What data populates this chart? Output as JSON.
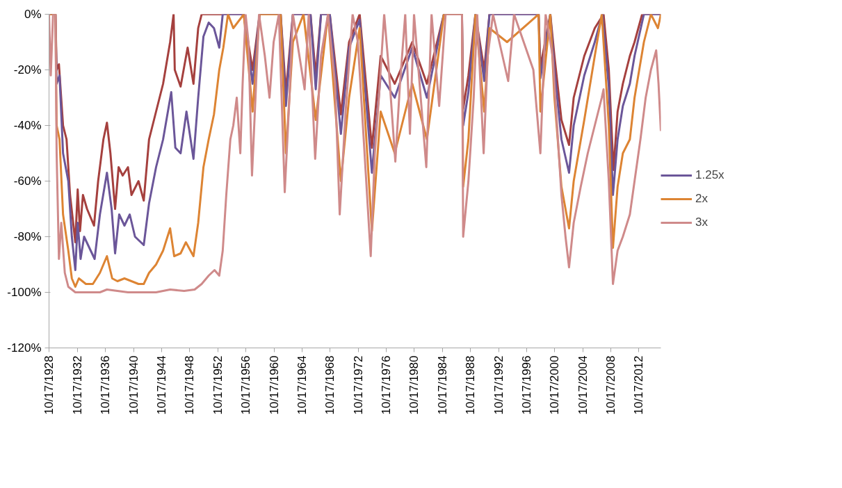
{
  "chart_data": {
    "type": "line",
    "legend": "right",
    "grid": false,
    "line_style": "solid",
    "marker": "none",
    "xlim": [
      "1928-10-01",
      "2015-12-01"
    ],
    "xticks": [
      {
        "value": "1928-10-17",
        "label": "10/17/1928"
      },
      {
        "value": "1932-10-17",
        "label": "10/17/1932"
      },
      {
        "value": "1936-10-17",
        "label": "10/17/1936"
      },
      {
        "value": "1940-10-17",
        "label": "10/17/1940"
      },
      {
        "value": "1944-10-17",
        "label": "10/17/1944"
      },
      {
        "value": "1948-10-17",
        "label": "10/17/1948"
      },
      {
        "value": "1952-10-17",
        "label": "10/17/1952"
      },
      {
        "value": "1956-10-17",
        "label": "10/17/1956"
      },
      {
        "value": "1960-10-17",
        "label": "10/17/1960"
      },
      {
        "value": "1964-10-17",
        "label": "10/17/1964"
      },
      {
        "value": "1968-10-17",
        "label": "10/17/1968"
      },
      {
        "value": "1972-10-17",
        "label": "10/17/1972"
      },
      {
        "value": "1976-10-17",
        "label": "10/17/1976"
      },
      {
        "value": "1980-10-17",
        "label": "10/17/1980"
      },
      {
        "value": "1984-10-17",
        "label": "10/17/1984"
      },
      {
        "value": "1988-10-17",
        "label": "10/17/1988"
      },
      {
        "value": "1992-10-17",
        "label": "10/17/1992"
      },
      {
        "value": "1996-10-17",
        "label": "10/17/1996"
      },
      {
        "value": "2000-10-17",
        "label": "10/17/2000"
      },
      {
        "value": "2004-10-17",
        "label": "10/17/2004"
      },
      {
        "value": "2008-10-17",
        "label": "10/17/2008"
      },
      {
        "value": "2012-10-17",
        "label": "10/17/2012"
      }
    ],
    "ylim": [
      -120,
      0
    ],
    "yticks": [
      {
        "value": -120,
        "label": "-120%"
      },
      {
        "value": -100,
        "label": "-100%"
      },
      {
        "value": -80,
        "label": "-80%"
      },
      {
        "value": -60,
        "label": "-60%"
      },
      {
        "value": -40,
        "label": "-40%"
      },
      {
        "value": -20,
        "label": "-20%"
      },
      {
        "value": 0,
        "label": "0%"
      }
    ],
    "series": [
      {
        "color": "#a5403e",
        "x": [
          "1928-10",
          "1929-09",
          "1929-11",
          "1930-03",
          "1930-10",
          "1931-04",
          "1931-10",
          "1932-07",
          "1932-11",
          "1933-03",
          "1933-08",
          "1934-03",
          "1935-03",
          "1935-10",
          "1936-07",
          "1937-01",
          "1937-07",
          "1938-03",
          "1938-09",
          "1939-04",
          "1940-01",
          "1940-07",
          "1941-07",
          "1942-04",
          "1943-01",
          "1944-01",
          "1945-01",
          "1946-01",
          "1946-07",
          "1946-09",
          "1947-07",
          "1948-07",
          "1949-05",
          "1950-01",
          "1950-07",
          "1956-07",
          "1957-10",
          "1958-10",
          "1961-10",
          "1962-07",
          "1963-07",
          "1966-01",
          "1966-10",
          "1967-07",
          "1968-10",
          "1970-05",
          "1971-07",
          "1973-01",
          "1974-10",
          "1976-01",
          "1978-01",
          "1980-07",
          "1982-08",
          "1985-01",
          "1987-08",
          "1987-10",
          "1988-07",
          "1989-07",
          "1990-10",
          "1991-07",
          "1998-07",
          "1998-10",
          "2000-03",
          "2000-10",
          "2001-10",
          "2002-11",
          "2003-07",
          "2005-01",
          "2006-07",
          "2007-10",
          "2008-07",
          "2009-03",
          "2009-10",
          "2010-07",
          "2011-07",
          "2012-03",
          "2013-04",
          "2015-12"
        ],
        "values": [
          0,
          0,
          -20,
          -18,
          -40,
          -45,
          -65,
          -82,
          -63,
          -78,
          -65,
          -70,
          -76,
          -60,
          -45,
          -39,
          -50,
          -70,
          -55,
          -58,
          -55,
          -65,
          -60,
          -67,
          -45,
          -35,
          -25,
          -10,
          0,
          -20,
          -26,
          -12,
          -25,
          -5,
          0,
          0,
          -20,
          0,
          0,
          -28,
          0,
          0,
          -22,
          0,
          0,
          -36,
          -10,
          0,
          -48,
          -15,
          -25,
          -10,
          -25,
          0,
          0,
          -34,
          -22,
          0,
          -20,
          0,
          0,
          -19,
          0,
          -15,
          -38,
          -47,
          -30,
          -15,
          -5,
          0,
          -20,
          -56,
          -35,
          -25,
          -15,
          -10,
          0,
          0
        ]
      },
      {
        "name": "1.25x",
        "color": "#6b5699",
        "x": [
          "1928-10",
          "1929-09",
          "1929-11",
          "1930-04",
          "1930-10",
          "1931-07",
          "1932-01",
          "1932-07",
          "1932-11",
          "1933-04",
          "1933-10",
          "1934-07",
          "1935-04",
          "1936-01",
          "1937-01",
          "1937-09",
          "1938-03",
          "1938-10",
          "1939-07",
          "1940-04",
          "1941-01",
          "1942-04",
          "1943-01",
          "1944-01",
          "1945-01",
          "1946-03",
          "1946-10",
          "1947-07",
          "1948-05",
          "1949-05",
          "1950-01",
          "1950-10",
          "1951-07",
          "1952-04",
          "1953-01",
          "1953-07",
          "1956-07",
          "1957-10",
          "1958-10",
          "1961-10",
          "1962-07",
          "1963-07",
          "1966-01",
          "1966-10",
          "1967-07",
          "1968-10",
          "1970-05",
          "1971-07",
          "1973-01",
          "1974-10",
          "1976-01",
          "1978-01",
          "1980-07",
          "1982-08",
          "1985-01",
          "1987-08",
          "1987-10",
          "1988-07",
          "1989-07",
          "1990-10",
          "1991-07",
          "1998-07",
          "1998-10",
          "2000-03",
          "2000-10",
          "2001-10",
          "2002-11",
          "2003-07",
          "2005-01",
          "2006-07",
          "2007-08",
          "2008-07",
          "2009-02",
          "2009-10",
          "2010-07",
          "2011-07",
          "2012-03",
          "2013-07",
          "2015-12"
        ],
        "values": [
          0,
          0,
          -25,
          -22,
          -50,
          -60,
          -80,
          -92,
          -75,
          -88,
          -80,
          -84,
          -88,
          -72,
          -57,
          -70,
          -86,
          -72,
          -76,
          -72,
          -80,
          -83,
          -68,
          -55,
          -45,
          -28,
          -48,
          -50,
          -35,
          -52,
          -30,
          -8,
          -3,
          -5,
          -12,
          0,
          0,
          -25,
          0,
          0,
          -33,
          0,
          0,
          -27,
          0,
          0,
          -43,
          -12,
          -2,
          -57,
          -22,
          -30,
          -12,
          -30,
          0,
          0,
          -40,
          -28,
          0,
          -24,
          0,
          0,
          -23,
          0,
          -20,
          -45,
          -57,
          -40,
          -22,
          -10,
          0,
          -26,
          -65,
          -45,
          -33,
          -25,
          -15,
          0,
          0
        ]
      },
      {
        "name": "2x",
        "color": "#dd8433",
        "x": [
          "1928-10",
          "1929-09",
          "1929-11",
          "1930-04",
          "1930-10",
          "1931-07",
          "1932-01",
          "1932-07",
          "1933-01",
          "1934-01",
          "1935-01",
          "1936-01",
          "1937-01",
          "1937-10",
          "1938-07",
          "1939-07",
          "1940-07",
          "1941-07",
          "1942-04",
          "1943-01",
          "1944-01",
          "1945-01",
          "1946-01",
          "1946-08",
          "1947-07",
          "1948-04",
          "1949-05",
          "1950-01",
          "1950-10",
          "1951-07",
          "1952-04",
          "1953-01",
          "1953-08",
          "1954-04",
          "1955-01",
          "1956-07",
          "1957-10",
          "1958-10",
          "1961-10",
          "1962-07",
          "1963-07",
          "1965-01",
          "1966-10",
          "1968-07",
          "1970-05",
          "1971-07",
          "1973-01",
          "1974-10",
          "1976-01",
          "1978-01",
          "1980-07",
          "1982-08",
          "1985-01",
          "1987-08",
          "1987-10",
          "1988-07",
          "1989-07",
          "1990-10",
          "1991-07",
          "1994-01",
          "1998-07",
          "1998-10",
          "2000-03",
          "2000-10",
          "2001-10",
          "2002-11",
          "2003-07",
          "2005-01",
          "2006-07",
          "2007-07",
          "2008-07",
          "2009-02",
          "2009-10",
          "2010-07",
          "2011-07",
          "2012-03",
          "2013-07",
          "2014-07",
          "2015-07",
          "2015-12"
        ],
        "values": [
          0,
          0,
          -40,
          -45,
          -72,
          -85,
          -95,
          -98,
          -95,
          -97,
          -97,
          -93,
          -87,
          -95,
          -96,
          -95,
          -96,
          -97,
          -97,
          -93,
          -90,
          -85,
          -77,
          -87,
          -86,
          -82,
          -87,
          -75,
          -55,
          -45,
          -36,
          -20,
          -12,
          0,
          -5,
          0,
          -35,
          0,
          0,
          -50,
          -10,
          0,
          -38,
          0,
          -60,
          -30,
          -5,
          -78,
          -35,
          -50,
          -25,
          -45,
          0,
          0,
          -62,
          -45,
          0,
          -35,
          -5,
          -10,
          0,
          -35,
          0,
          -30,
          -62,
          -77,
          -60,
          -38,
          -15,
          0,
          -40,
          -84,
          -62,
          -50,
          -45,
          -30,
          -10,
          0,
          -5,
          0
        ]
      },
      {
        "name": "3x",
        "color": "#cf8a8a",
        "x": [
          "1928-10",
          "1929-01",
          "1929-05",
          "1929-09",
          "1929-11",
          "1930-03",
          "1930-07",
          "1931-01",
          "1931-07",
          "1932-01",
          "1932-07",
          "1936-01",
          "1937-01",
          "1940-01",
          "1944-01",
          "1946-01",
          "1948-01",
          "1949-07",
          "1950-07",
          "1951-07",
          "1952-05",
          "1953-01",
          "1953-07",
          "1954-01",
          "1954-08",
          "1955-01",
          "1955-07",
          "1956-01",
          "1956-05",
          "1956-10",
          "1957-03",
          "1957-09",
          "1958-03",
          "1958-09",
          "1959-07",
          "1960-03",
          "1960-10",
          "1961-07",
          "1962-05",
          "1963-01",
          "1963-07",
          "1965-03",
          "1965-10",
          "1966-09",
          "1967-07",
          "1968-07",
          "1969-07",
          "1970-03",
          "1971-01",
          "1972-01",
          "1972-10",
          "1974-08",
          "1975-03",
          "1975-10",
          "1976-07",
          "1977-03",
          "1978-02",
          "1978-10",
          "1979-07",
          "1980-03",
          "1980-10",
          "1982-07",
          "1983-04",
          "1984-05",
          "1985-04",
          "1987-08",
          "1987-10",
          "1988-07",
          "1989-04",
          "1989-10",
          "1990-09",
          "1991-04",
          "1992-01",
          "1994-03",
          "1995-01",
          "1997-10",
          "1998-10",
          "1999-07",
          "2000-07",
          "2001-01",
          "2001-10",
          "2002-05",
          "2002-11",
          "2003-07",
          "2004-07",
          "2005-07",
          "2006-07",
          "2007-07",
          "2007-10",
          "2008-07",
          "2009-02",
          "2009-10",
          "2010-07",
          "2011-07",
          "2012-03",
          "2013-01",
          "2013-10",
          "2014-07",
          "2015-04",
          "2015-08",
          "2015-12"
        ],
        "values": [
          0,
          -22,
          0,
          0,
          -50,
          -88,
          -75,
          -93,
          -98,
          -99,
          -100,
          -100,
          -99,
          -100,
          -100,
          -99,
          -99.5,
          -99,
          -97,
          -94,
          -92,
          -94,
          -85,
          -65,
          -45,
          -40,
          -30,
          -50,
          -25,
          0,
          -10,
          -58,
          -30,
          0,
          -15,
          -30,
          -10,
          0,
          -64,
          -30,
          0,
          -27,
          0,
          -52,
          -15,
          0,
          -25,
          -72,
          -35,
          0,
          -10,
          -87,
          -50,
          -30,
          0,
          -20,
          -53,
          -25,
          0,
          -43,
          0,
          -55,
          0,
          -33,
          0,
          0,
          -80,
          -60,
          -30,
          0,
          -50,
          -15,
          0,
          -24,
          0,
          -20,
          -50,
          0,
          -15,
          -35,
          -65,
          -80,
          -91,
          -75,
          -62,
          -50,
          -40,
          -30,
          -27,
          -60,
          -97,
          -85,
          -80,
          -72,
          -60,
          -45,
          -30,
          -20,
          -13,
          -25,
          -42
        ]
      }
    ]
  }
}
